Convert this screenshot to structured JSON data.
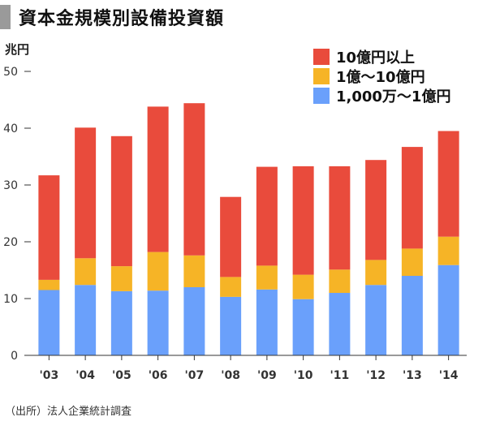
{
  "title": "資本金規模別設備投資額",
  "source": "（出所）法人企業統計調査",
  "chart_data": {
    "type": "bar",
    "stacked": true,
    "title": "資本金規模別設備投資額",
    "ylabel": "兆円",
    "xlabel": "",
    "ylim": [
      0,
      50
    ],
    "yticks": [
      0,
      10,
      20,
      30,
      40,
      50
    ],
    "grid": false,
    "legend_position": "top-right",
    "categories": [
      "'03",
      "'04",
      "'05",
      "'06",
      "'07",
      "'08",
      "'09",
      "'10",
      "'11",
      "'12",
      "'13",
      "'14"
    ],
    "series": [
      {
        "name": "1,000万～1億円",
        "color": "#6aa0fb",
        "values": [
          11.5,
          12.4,
          11.3,
          11.4,
          12.0,
          10.3,
          11.6,
          9.9,
          11.0,
          12.4,
          14.0,
          15.9
        ]
      },
      {
        "name": "1億～10億円",
        "color": "#f6b426",
        "values": [
          1.8,
          4.7,
          4.4,
          6.8,
          5.6,
          3.5,
          4.2,
          4.3,
          4.1,
          4.4,
          4.8,
          5.0
        ]
      },
      {
        "name": "10億円以上",
        "color": "#e94b3c",
        "values": [
          18.4,
          23.0,
          22.9,
          25.6,
          26.8,
          14.1,
          17.4,
          19.1,
          18.2,
          17.6,
          17.9,
          18.6
        ]
      }
    ]
  }
}
